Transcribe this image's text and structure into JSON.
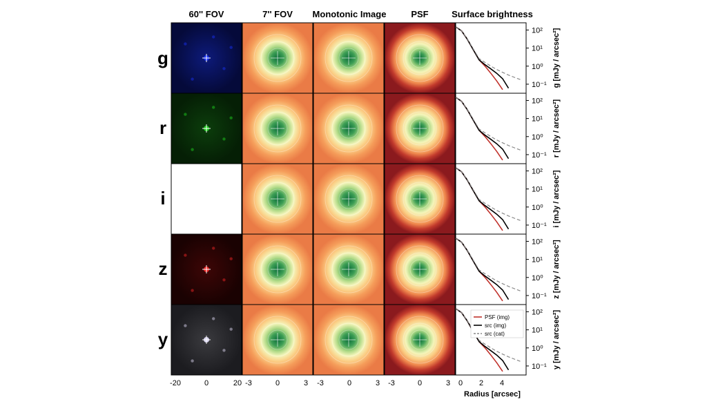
{
  "chart_data": {
    "type": "image-grid",
    "columns": [
      "60'' FOV",
      "7'' FOV",
      "Monotonic Image",
      "PSF",
      "Surface brightness"
    ],
    "bands": [
      {
        "label": "g",
        "fov_color": "#1a33ff",
        "ylabel": "g [mJy / arcsec²]"
      },
      {
        "label": "r",
        "fov_color": "#22dd22",
        "ylabel": "r [mJy / arcsec²]"
      },
      {
        "label": "i",
        "fov_color": "",
        "ylabel": "i [mJy / arcsec²]"
      },
      {
        "label": "z",
        "fov_color": "#ff2a2a",
        "ylabel": "z [mJy / arcsec²]"
      },
      {
        "label": "y",
        "fov_color": "#e8e2ff",
        "ylabel": "y [mJy / arcsec²]"
      }
    ],
    "x_ticks": {
      "fov60": [
        "-20",
        "0",
        "20"
      ],
      "fov7": [
        "-3",
        "0",
        "3"
      ],
      "mono": [
        "-3",
        "0",
        "3"
      ],
      "psf": [
        "-3",
        "0",
        "3"
      ],
      "sb": [
        "0",
        "2",
        "4"
      ]
    },
    "sb_xlabel": "Radius [arcsec]",
    "sb_yticks": [
      "10²",
      "10¹",
      "10⁰",
      "10⁻¹"
    ],
    "sb_xlim": [
      0,
      6
    ],
    "sb_ylim_log10": [
      -1.5,
      2.4
    ],
    "legend": [
      "PSF (img)",
      "src (img)",
      "src (cat)"
    ],
    "series": [
      {
        "name": "PSF (img)",
        "color": "#c0302a",
        "x": [
          0.0,
          0.5,
          1.0,
          1.5,
          2.0,
          2.5,
          3.0,
          3.5,
          4.0
        ],
        "y": [
          150,
          90,
          30,
          8,
          2.2,
          1.0,
          0.4,
          0.15,
          0.05
        ]
      },
      {
        "name": "src (img)",
        "color": "#000000",
        "x": [
          0.0,
          0.5,
          1.0,
          1.5,
          2.0,
          2.5,
          3.0,
          3.5,
          4.0,
          4.5
        ],
        "y": [
          150,
          90,
          30,
          8,
          2.2,
          1.2,
          0.7,
          0.4,
          0.2,
          0.06
        ]
      },
      {
        "name": "src (cat)",
        "color": "#888888",
        "x": [
          0.0,
          0.5,
          1.0,
          1.5,
          2.0,
          2.5,
          3.0,
          3.5,
          4.0,
          4.5,
          5.0,
          5.5
        ],
        "y": [
          150,
          90,
          32,
          9,
          2.6,
          1.6,
          1.0,
          0.65,
          0.45,
          0.32,
          0.24,
          0.18
        ]
      }
    ]
  }
}
